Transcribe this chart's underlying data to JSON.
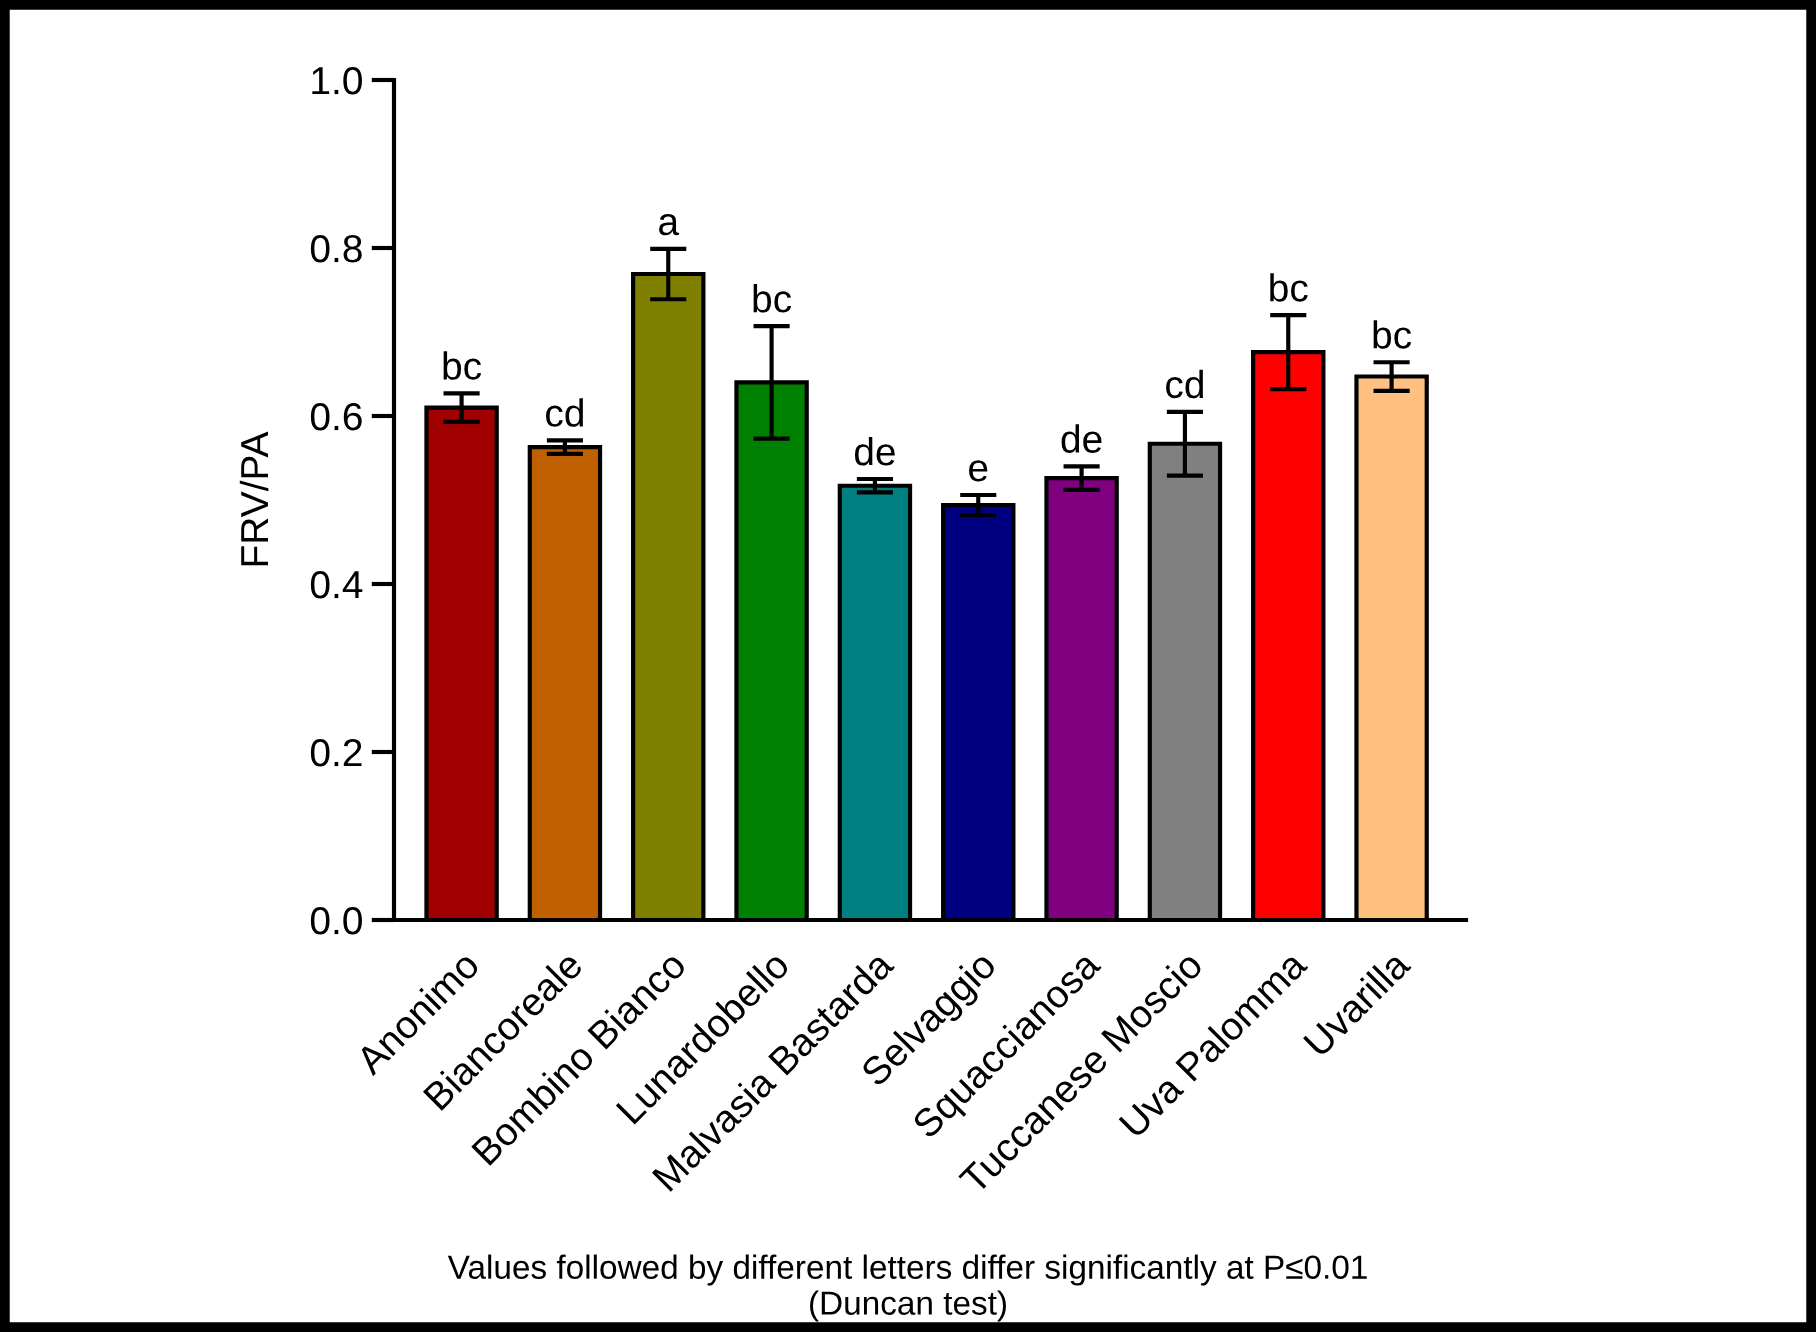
{
  "chart_data": {
    "type": "bar",
    "ylabel": "FRV/PA",
    "categories": [
      "Anonimo",
      "Biancoreale",
      "Bombino Bianco",
      "Lunardobello",
      "Malvasia Bastarda",
      "Selvaggio",
      "Squaccianosa",
      "Tuccanese Moscio",
      "Uva Palomma",
      "Uvarilla"
    ],
    "values": [
      0.61,
      0.563,
      0.769,
      0.64,
      0.517,
      0.494,
      0.526,
      0.567,
      0.676,
      0.647
    ],
    "errors": [
      0.017,
      0.008,
      0.03,
      0.067,
      0.008,
      0.012,
      0.014,
      0.038,
      0.044,
      0.017
    ],
    "colors": [
      "#a00000",
      "#c06000",
      "#808000",
      "#008000",
      "#008080",
      "#000080",
      "#800080",
      "#808080",
      "#ff0000",
      "#ffc080"
    ],
    "ylim": [
      0,
      1.0
    ],
    "yticks": [
      {
        "value": 0,
        "label": "0.0"
      },
      0.2,
      0.4,
      0.6,
      0.8,
      {
        "value": 1.0,
        "label": "1.0"
      }
    ],
    "annotations": [
      {
        "text": "bc",
        "x": "Anonimo",
        "y": 0.627
      },
      {
        "text": "cd",
        "x": "Biancoreale",
        "y": 0.571
      },
      {
        "text": "a",
        "x": "Bombino Bianco",
        "y": 0.799
      },
      {
        "text": "bc",
        "x": "Lunardobello",
        "y": 0.707
      },
      {
        "text": "de",
        "x": "Malvasia Bastarda",
        "y": 0.525
      },
      {
        "text": "e",
        "x": "Selvaggio",
        "y": 0.506
      },
      {
        "text": "de",
        "x": "Squaccianosa",
        "y": 0.54
      },
      {
        "text": "cd",
        "x": "Tuccanese Moscio",
        "y": 0.605
      },
      {
        "text": "bc",
        "x": "Uva Palomma",
        "y": 0.72
      },
      {
        "text": "bc",
        "x": "Uvarilla",
        "y": 0.664
      },
      "Values followed by different letters differ significantly at P≤0.01\n(Duncan test)"
    ],
    "grid": false
  }
}
